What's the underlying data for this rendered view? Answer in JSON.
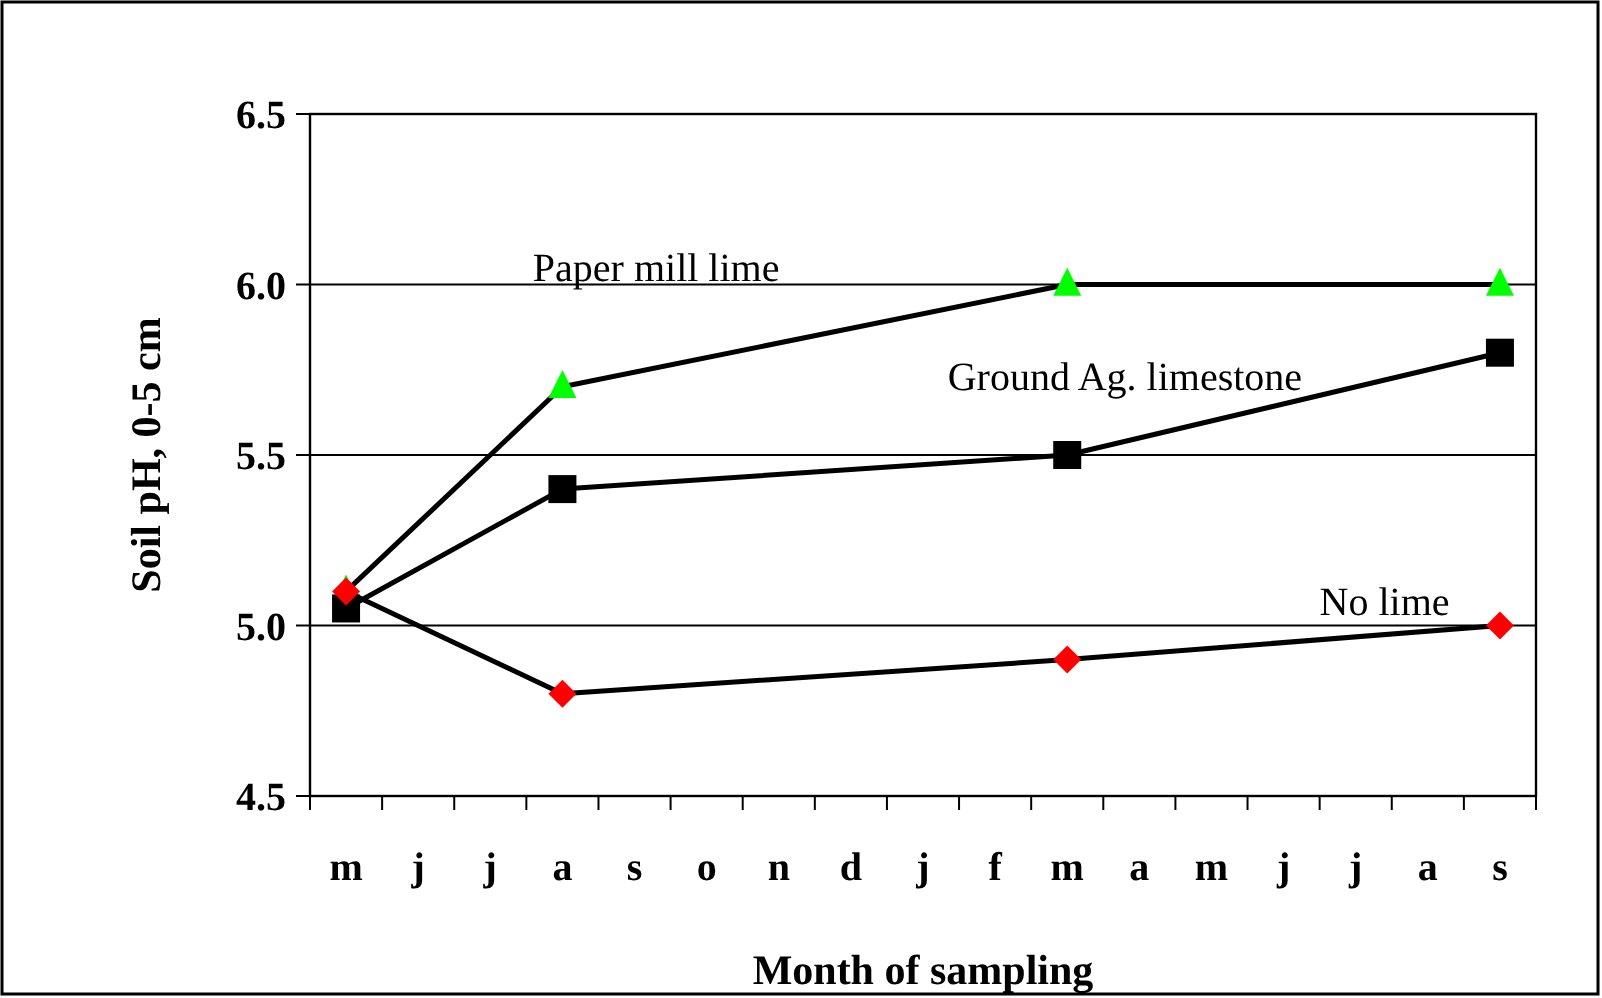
{
  "chart_data": {
    "type": "line",
    "xlabel": "Month of sampling",
    "ylabel": "Soil pH, 0-5 cm",
    "categories": [
      "m",
      "j",
      "j",
      "a",
      "s",
      "o",
      "n",
      "d",
      "j",
      "f",
      "m",
      "a",
      "m",
      "j",
      "j",
      "a",
      "s"
    ],
    "ylim": [
      4.5,
      6.5
    ],
    "yticks": [
      {
        "value": 4.5,
        "label": "4.5"
      },
      {
        "value": 5,
        "label": "5.0"
      },
      {
        "value": 5.5,
        "label": "5.5"
      },
      {
        "value": 6,
        "label": "6.0"
      },
      {
        "value": 6.5,
        "label": "6.5"
      }
    ],
    "grid": "y",
    "legend": false,
    "line_style": "solid",
    "series": [
      {
        "name": "Paper mill lime",
        "color": "#00ff00",
        "marker": "triangle",
        "values": [
          5.1,
          null,
          null,
          5.7,
          null,
          null,
          null,
          null,
          null,
          null,
          6.0,
          null,
          null,
          null,
          null,
          null,
          6.0
        ]
      },
      {
        "name": "Ground Ag. limestone",
        "color": "#000000",
        "marker": "square",
        "values": [
          5.05,
          null,
          null,
          5.4,
          null,
          null,
          null,
          null,
          null,
          null,
          5.5,
          null,
          null,
          null,
          null,
          null,
          5.8
        ]
      },
      {
        "name": "No lime",
        "color": "#ff0000",
        "marker": "diamond",
        "values": [
          5.1,
          null,
          null,
          4.8,
          null,
          null,
          null,
          null,
          null,
          null,
          4.9,
          null,
          null,
          null,
          null,
          null,
          5.0
        ]
      }
    ]
  }
}
